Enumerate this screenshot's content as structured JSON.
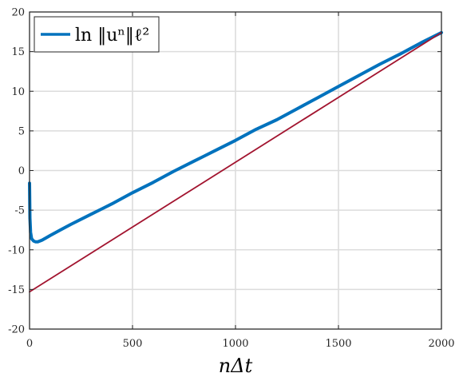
{
  "chart_data": {
    "type": "line",
    "title": "",
    "xlabel": "nΔt",
    "ylabel": "",
    "xlim": [
      0,
      2000
    ],
    "ylim": [
      -20,
      20
    ],
    "xticks": [
      0,
      500,
      1000,
      1500,
      2000
    ],
    "yticks": [
      -20,
      -15,
      -10,
      -5,
      0,
      5,
      10,
      15,
      20
    ],
    "grid": true,
    "legend": {
      "placement": "top-left",
      "entries": [
        "ln ‖uⁿ‖ℓ²"
      ]
    },
    "series": [
      {
        "name": "ln ‖uⁿ‖ℓ²",
        "color": "#0072BD",
        "x": [
          0,
          2,
          5,
          10,
          20,
          30,
          40,
          60,
          80,
          100,
          150,
          200,
          300,
          400,
          500,
          600,
          700,
          800,
          900,
          1000,
          1100,
          1200,
          1300,
          1400,
          1500,
          1600,
          1700,
          1800,
          1900,
          2000
        ],
        "y": [
          -1.6,
          -6.0,
          -7.8,
          -8.6,
          -8.9,
          -9.0,
          -9.0,
          -8.8,
          -8.5,
          -8.2,
          -7.5,
          -6.8,
          -5.5,
          -4.2,
          -2.8,
          -1.5,
          -0.1,
          1.2,
          2.5,
          3.8,
          5.2,
          6.4,
          7.8,
          9.2,
          10.6,
          12.0,
          13.4,
          14.7,
          16.1,
          17.4
        ]
      },
      {
        "name": "",
        "color": "#A2142F",
        "x": [
          0,
          2000
        ],
        "y": [
          -15.3,
          17.4
        ]
      }
    ]
  }
}
